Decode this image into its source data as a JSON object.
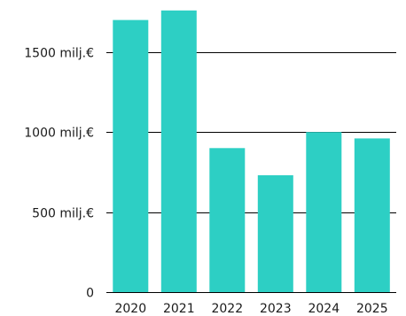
{
  "chart_data": {
    "type": "bar",
    "title": "",
    "xlabel": "",
    "ylabel": "",
    "categories": [
      "2020",
      "2021",
      "2022",
      "2023",
      "2024",
      "2025"
    ],
    "values": [
      1700,
      1760,
      900,
      730,
      1000,
      960
    ],
    "ylim": [
      0,
      1800
    ],
    "yticks": [
      {
        "value": 0,
        "label": "0"
      },
      {
        "value": 500,
        "label": "500 milj.€"
      },
      {
        "value": 1000,
        "label": "1000 milj.€"
      },
      {
        "value": 1500,
        "label": "1500 milj.€"
      }
    ],
    "grid": true,
    "legend": "none",
    "bar_color": "#2dcfc4",
    "grid_color": "#000000",
    "text_color": "#1a1a1a"
  }
}
